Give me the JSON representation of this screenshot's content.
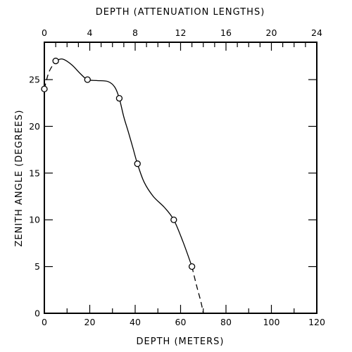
{
  "chart_data": {
    "type": "scatter",
    "x_axis": {
      "label": "DEPTH (METERS)",
      "range": [
        0,
        120
      ],
      "ticks": [
        0,
        20,
        40,
        60,
        80,
        100,
        120
      ]
    },
    "x2_axis": {
      "label": "DEPTH (ATTENUATION LENGTHS)",
      "range": [
        0,
        24
      ],
      "ticks": [
        0,
        4,
        8,
        12,
        16,
        20,
        24
      ]
    },
    "y_axis": {
      "label": "ZENITH ANGLE (DEGREES)",
      "range": [
        0,
        29
      ],
      "ticks": [
        0,
        5,
        10,
        15,
        20,
        25
      ]
    },
    "series": [
      {
        "points": [
          {
            "x": 0,
            "y": 24
          },
          {
            "x": 5,
            "y": 27
          },
          {
            "x": 19,
            "y": 25
          },
          {
            "x": 33,
            "y": 23
          },
          {
            "x": 41,
            "y": 16
          },
          {
            "x": 57,
            "y": 10
          },
          {
            "x": 65,
            "y": 5
          }
        ],
        "curve": [
          {
            "x": 0,
            "y": 24,
            "s": "dashed"
          },
          {
            "x": 2,
            "y": 25.8,
            "s": "dashed"
          },
          {
            "x": 5,
            "y": 27,
            "s": "solid"
          },
          {
            "x": 8,
            "y": 27.2,
            "s": "solid"
          },
          {
            "x": 12,
            "y": 26.6,
            "s": "solid"
          },
          {
            "x": 16,
            "y": 25.6,
            "s": "solid"
          },
          {
            "x": 19,
            "y": 25,
            "s": "solid"
          },
          {
            "x": 23,
            "y": 24.9,
            "s": "solid"
          },
          {
            "x": 28,
            "y": 24.8,
            "s": "solid"
          },
          {
            "x": 31,
            "y": 24.2,
            "s": "solid"
          },
          {
            "x": 33,
            "y": 23,
            "s": "solid"
          },
          {
            "x": 35,
            "y": 21,
            "s": "solid"
          },
          {
            "x": 37,
            "y": 19.4,
            "s": "solid"
          },
          {
            "x": 39,
            "y": 17.7,
            "s": "solid"
          },
          {
            "x": 41,
            "y": 16,
            "s": "solid"
          },
          {
            "x": 44,
            "y": 14,
            "s": "solid"
          },
          {
            "x": 48,
            "y": 12.5,
            "s": "solid"
          },
          {
            "x": 53,
            "y": 11.3,
            "s": "solid"
          },
          {
            "x": 57,
            "y": 10,
            "s": "solid"
          },
          {
            "x": 61,
            "y": 7.7,
            "s": "solid"
          },
          {
            "x": 65,
            "y": 5,
            "s": "solid"
          },
          {
            "x": 67,
            "y": 3,
            "s": "dashed"
          },
          {
            "x": 69,
            "y": 1.2,
            "s": "dashed"
          },
          {
            "x": 70,
            "y": 0,
            "s": "dashed"
          }
        ]
      }
    ]
  }
}
